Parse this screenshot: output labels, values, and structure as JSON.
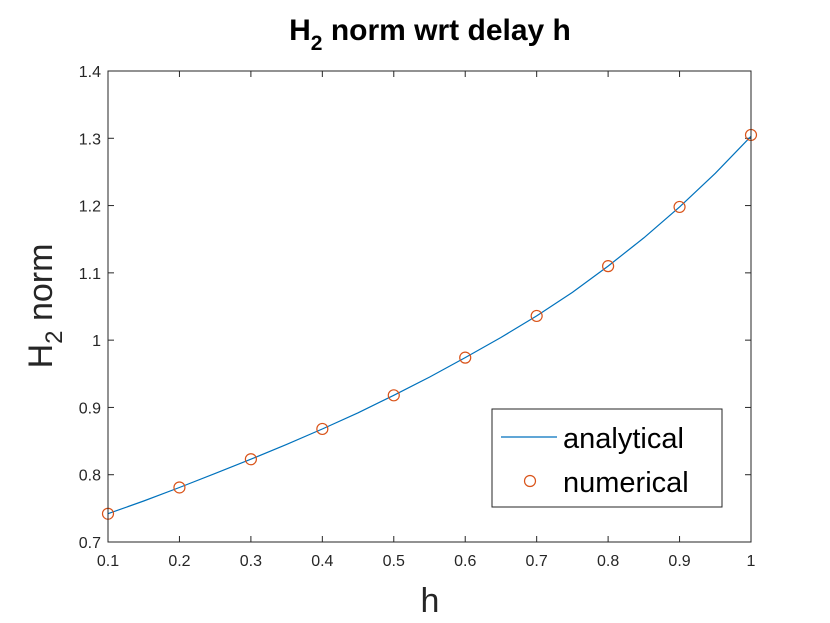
{
  "chart_data": {
    "type": "line",
    "title": {
      "main": "H",
      "sub": "2",
      "rest": " norm wrt delay h"
    },
    "xlabel": "h",
    "ylabel": {
      "main": "H",
      "sub": "2",
      "rest": " norm"
    },
    "xlim": [
      0.1,
      1
    ],
    "ylim": [
      0.7,
      1.4
    ],
    "xticks": [
      0.1,
      0.2,
      0.3,
      0.4,
      0.5,
      0.6,
      0.7,
      0.8,
      0.9,
      1
    ],
    "xtick_labels": [
      "0.1",
      "0.2",
      "0.3",
      "0.4",
      "0.5",
      "0.6",
      "0.7",
      "0.8",
      "0.9",
      "1"
    ],
    "yticks": [
      0.7,
      0.8,
      0.9,
      1.0,
      1.1,
      1.2,
      1.3,
      1.4
    ],
    "ytick_labels": [
      "0.7",
      "0.8",
      "0.9",
      "1",
      "1.1",
      "1.2",
      "1.3",
      "1.4"
    ],
    "grid": false,
    "legend_position": "bottom-right",
    "series": [
      {
        "name": "analytical",
        "style": "line",
        "color": "#0072bd",
        "x": [
          0.1,
          0.15,
          0.2,
          0.25,
          0.3,
          0.35,
          0.4,
          0.45,
          0.5,
          0.55,
          0.6,
          0.65,
          0.7,
          0.75,
          0.8,
          0.85,
          0.9,
          0.95,
          1.0
        ],
        "y": [
          0.742,
          0.761,
          0.781,
          0.802,
          0.823,
          0.845,
          0.868,
          0.892,
          0.918,
          0.945,
          0.974,
          1.004,
          1.036,
          1.071,
          1.11,
          1.152,
          1.198,
          1.248,
          1.303
        ]
      },
      {
        "name": "numerical",
        "style": "marker",
        "color": "#d95319",
        "x": [
          0.1,
          0.2,
          0.3,
          0.4,
          0.5,
          0.6,
          0.7,
          0.8,
          0.9,
          1.0
        ],
        "y": [
          0.742,
          0.781,
          0.823,
          0.868,
          0.918,
          0.974,
          1.036,
          1.11,
          1.198,
          1.305
        ]
      }
    ]
  }
}
